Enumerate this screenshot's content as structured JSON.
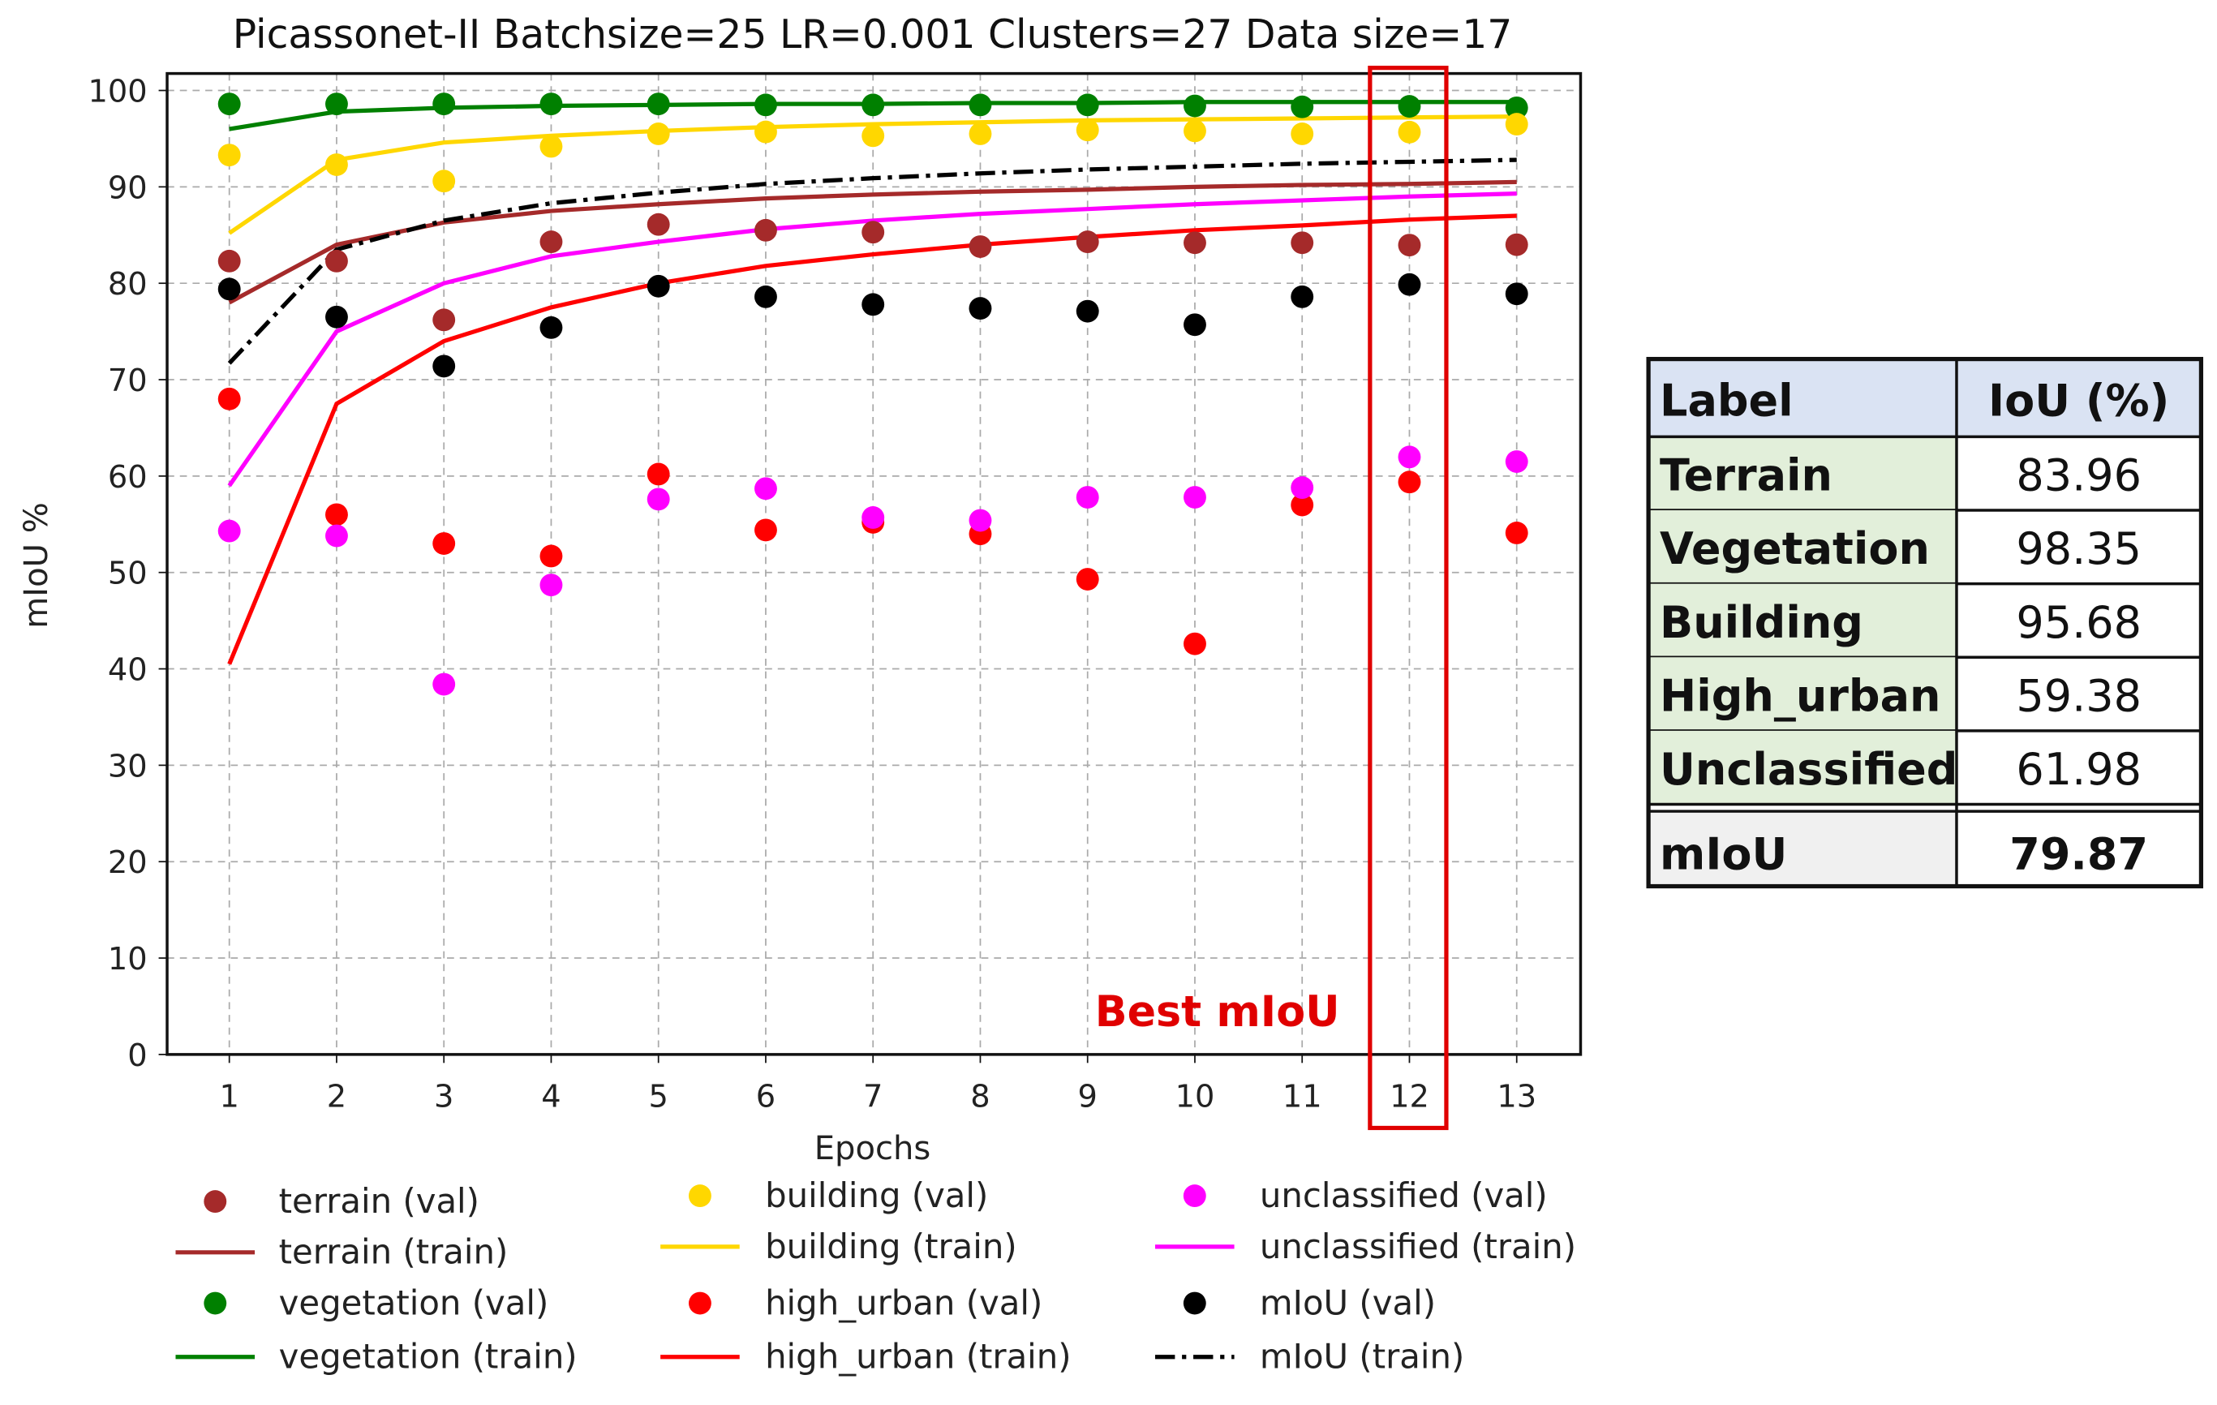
{
  "chart_data": {
    "type": "line",
    "title": "Picassonet-II Batchsize=25 LR=0.001 Clusters=27 Data size=17",
    "xlabel": "Epochs",
    "ylabel": "mIoU %",
    "x": [
      1,
      2,
      3,
      4,
      5,
      6,
      7,
      8,
      9,
      10,
      11,
      12,
      13
    ],
    "xticks": [
      "1",
      "2",
      "3",
      "4",
      "5",
      "6",
      "7",
      "8",
      "9",
      "10",
      "11",
      "12",
      "13"
    ],
    "yticks": [
      "0",
      "10",
      "20",
      "30",
      "40",
      "50",
      "60",
      "70",
      "80",
      "90",
      "100"
    ],
    "ylim": [
      0,
      100
    ],
    "grid": true,
    "legend_position": "bottom",
    "series": [
      {
        "name": "terrain (val)",
        "kind": "scatter",
        "color": "#a52a2a",
        "values": [
          82.3,
          82.3,
          76.2,
          84.3,
          86.1,
          85.5,
          85.3,
          83.8,
          84.3,
          84.2,
          84.2,
          83.96,
          84.0
        ]
      },
      {
        "name": "terrain (train)",
        "kind": "line",
        "color": "#a52a2a",
        "dash": "solid",
        "values": [
          78,
          84,
          86.3,
          87.5,
          88.2,
          88.8,
          89.2,
          89.5,
          89.7,
          90,
          90.2,
          90.3,
          90.5
        ]
      },
      {
        "name": "vegetation (val)",
        "kind": "scatter",
        "color": "#008000",
        "values": [
          98.6,
          98.6,
          98.6,
          98.6,
          98.6,
          98.5,
          98.5,
          98.5,
          98.5,
          98.4,
          98.3,
          98.35,
          98.2
        ]
      },
      {
        "name": "vegetation (train)",
        "kind": "line",
        "color": "#008000",
        "dash": "solid",
        "values": [
          96,
          97.8,
          98.2,
          98.4,
          98.5,
          98.6,
          98.6,
          98.7,
          98.7,
          98.8,
          98.8,
          98.8,
          98.8
        ]
      },
      {
        "name": "building (val)",
        "kind": "scatter",
        "color": "#ffd700",
        "values": [
          93.3,
          92.3,
          90.6,
          94.2,
          95.5,
          95.7,
          95.3,
          95.5,
          95.9,
          95.8,
          95.5,
          95.68,
          96.5
        ]
      },
      {
        "name": "building (train)",
        "kind": "line",
        "color": "#ffd700",
        "dash": "solid",
        "values": [
          85.2,
          92.8,
          94.6,
          95.3,
          95.8,
          96.2,
          96.5,
          96.7,
          96.9,
          97.0,
          97.1,
          97.2,
          97.3
        ]
      },
      {
        "name": "high_urban (val)",
        "kind": "scatter",
        "color": "#ff0000",
        "values": [
          68,
          56,
          53,
          51.7,
          60.2,
          54.4,
          55.2,
          54,
          49.3,
          42.6,
          57,
          59.38,
          54.1
        ]
      },
      {
        "name": "high_urban (train)",
        "kind": "line",
        "color": "#ff0000",
        "dash": "solid",
        "values": [
          40.5,
          67.5,
          74,
          77.5,
          80,
          81.8,
          83,
          84,
          84.8,
          85.5,
          86,
          86.6,
          87
        ]
      },
      {
        "name": "unclassified (val)",
        "kind": "scatter",
        "color": "#ff00ff",
        "values": [
          54.3,
          53.8,
          38.4,
          48.7,
          57.6,
          58.7,
          55.7,
          55.4,
          57.8,
          57.8,
          58.8,
          61.98,
          61.5
        ]
      },
      {
        "name": "unclassified (train)",
        "kind": "line",
        "color": "#ff00ff",
        "dash": "solid",
        "values": [
          59,
          75,
          80,
          82.8,
          84.3,
          85.6,
          86.5,
          87.2,
          87.7,
          88.2,
          88.6,
          89,
          89.3
        ]
      },
      {
        "name": "mIoU (val)",
        "kind": "scatter",
        "color": "#000000",
        "values": [
          79.4,
          76.5,
          71.4,
          75.4,
          79.7,
          78.6,
          77.8,
          77.4,
          77.1,
          75.7,
          78.6,
          79.87,
          78.9
        ]
      },
      {
        "name": "mIoU (train)",
        "kind": "line",
        "color": "#000000",
        "dash": "dashdot",
        "values": [
          71.7,
          83.5,
          86.5,
          88.3,
          89.4,
          90.3,
          90.9,
          91.4,
          91.8,
          92.1,
          92.4,
          92.6,
          92.8
        ]
      }
    ],
    "annotation": {
      "text": "Best mIoU",
      "epoch": 12,
      "color": "#e00000"
    },
    "table": {
      "headers": [
        "Label",
        "IoU (%)"
      ],
      "rows": [
        [
          "Terrain",
          "83.96"
        ],
        [
          "Vegetation",
          "98.35"
        ],
        [
          "Building",
          "95.68"
        ],
        [
          "High_urban",
          "59.38"
        ],
        [
          "Unclassified",
          "61.98"
        ]
      ],
      "summary": [
        "mIoU",
        "79.87"
      ]
    }
  }
}
